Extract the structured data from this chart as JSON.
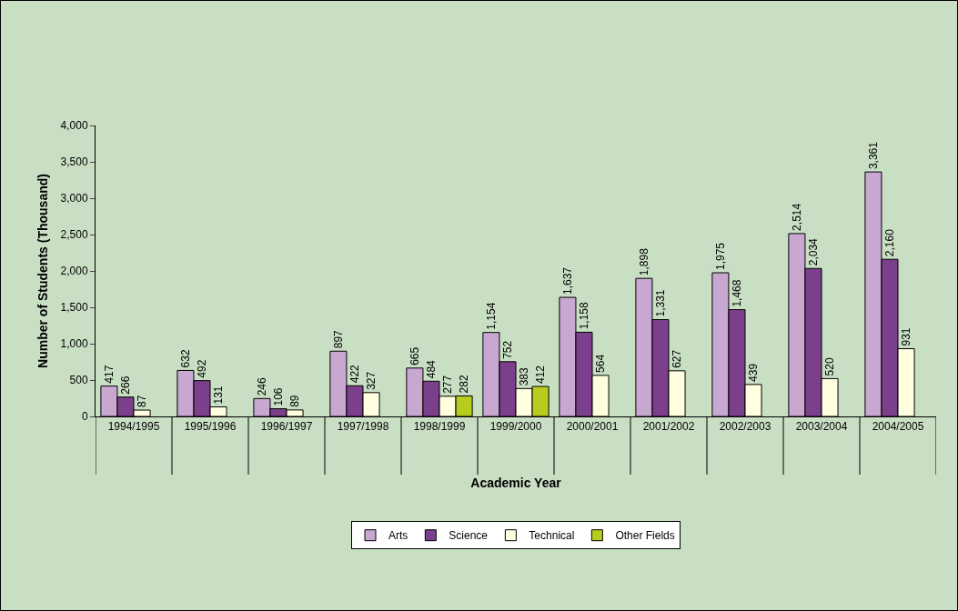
{
  "chart_data": {
    "type": "bar",
    "xlabel": "Academic Year",
    "ylabel": "Number of Students (Thousand)",
    "categories": [
      "1994/1995",
      "1995/1996",
      "1996/1997",
      "1997/1998",
      "1998/1999",
      "1999/2000",
      "2000/2001",
      "2001/2002",
      "2002/2003",
      "2003/2004",
      "2004/2005"
    ],
    "series": [
      {
        "name": "Arts",
        "color": "#c8a8d0",
        "values": [
          417,
          632,
          246,
          897,
          665,
          1154,
          1637,
          1898,
          1975,
          2514,
          3361
        ],
        "value_labels": [
          "417",
          "632",
          "246",
          "897",
          "665",
          "1,154",
          "1,637",
          "1,898",
          "1,975",
          "2,514",
          "3,361"
        ]
      },
      {
        "name": "Science",
        "color": "#7b3f8c",
        "values": [
          266,
          492,
          106,
          422,
          484,
          752,
          1158,
          1331,
          1468,
          2034,
          2160
        ],
        "value_labels": [
          "266",
          "492",
          "106",
          "422",
          "484",
          "752",
          "1,158",
          "1,331",
          "1,468",
          "2,034",
          "2,160"
        ]
      },
      {
        "name": "Technical",
        "color": "#ffffe0",
        "values": [
          87,
          131,
          89,
          327,
          277,
          383,
          564,
          627,
          439,
          520,
          931
        ],
        "value_labels": [
          "87",
          "131",
          "89",
          "327",
          "277",
          "383",
          "564",
          "627",
          "439",
          "520",
          "931"
        ]
      },
      {
        "name": "Other Fields",
        "color": "#b8cc1e",
        "values": [
          null,
          null,
          null,
          null,
          282,
          412,
          null,
          null,
          null,
          null,
          null
        ],
        "value_labels": [
          null,
          null,
          null,
          null,
          "282",
          "412",
          null,
          null,
          null,
          null,
          null
        ]
      }
    ],
    "ylim": [
      0,
      4000
    ],
    "yticks": [
      0,
      {
        "value": 500,
        "label": "500"
      },
      {
        "value": 1000,
        "label": "1,000"
      },
      {
        "value": 1500,
        "label": "1,500"
      },
      {
        "value": 2000,
        "label": "2,000"
      },
      {
        "value": 2500,
        "label": "2,500"
      },
      {
        "value": 3000,
        "label": "3,000"
      },
      {
        "value": 3500,
        "label": "3,500"
      },
      {
        "value": 4000,
        "label": "4,000"
      }
    ],
    "grid": false,
    "legend": "bottom"
  }
}
